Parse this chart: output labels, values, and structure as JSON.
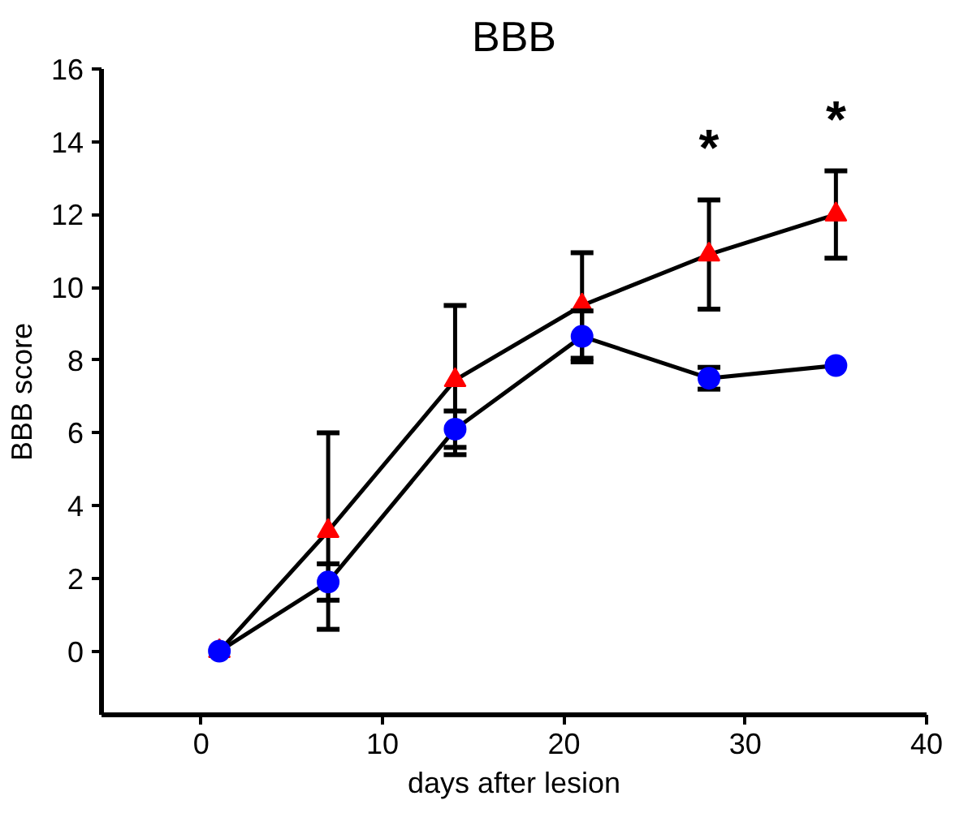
{
  "chart_data": {
    "type": "line",
    "title": "BBB",
    "xlabel": "days after lesion",
    "ylabel": "BBB score",
    "x": [
      1,
      7,
      14,
      21,
      28,
      35
    ],
    "series": [
      {
        "color": "#ff0000",
        "marker": "triangle",
        "values": [
          0,
          3.3,
          7.45,
          9.5,
          10.9,
          12.0
        ],
        "errors": [
          null,
          2.7,
          2.05,
          1.45,
          1.5,
          1.2
        ]
      },
      {
        "color": "#0000ff",
        "marker": "circle",
        "values": [
          0,
          1.9,
          6.1,
          8.65,
          7.5,
          7.85
        ],
        "errors": [
          null,
          0.5,
          0.5,
          0.7,
          0.3,
          null
        ]
      }
    ],
    "xlim": [
      -5.5,
      40
    ],
    "ylim": [
      -1.75,
      16
    ],
    "xticks": [
      0,
      10,
      20,
      30,
      40
    ],
    "yticks": [
      0,
      2,
      4,
      6,
      8,
      10,
      12,
      14,
      16
    ],
    "grid": false,
    "line_style": "solid",
    "annotations": [
      "*",
      "*"
    ]
  }
}
